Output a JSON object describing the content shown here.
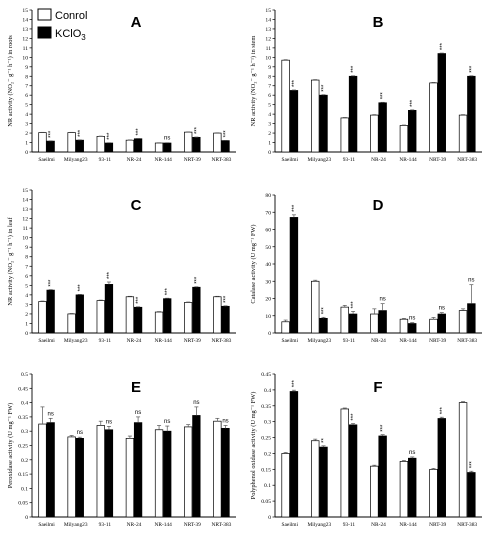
{
  "legend": {
    "control_label": "Conrol",
    "treatment_label_main": "KClO",
    "treatment_label_sub": "3"
  },
  "colors": {
    "control": "#ffffff",
    "treatment": "#000000"
  },
  "chart_data": [
    {
      "type": "bar",
      "panel": "A",
      "ylabel": "NR activity (NO₂⁻ g⁻¹ h⁻¹) in roots",
      "ylim": [
        0,
        15
      ],
      "yticks": [
        0,
        1,
        2,
        3,
        4,
        5,
        6,
        7,
        8,
        9,
        10,
        11,
        12,
        13,
        14,
        15
      ],
      "categories": [
        "Saeilmi",
        "Milyang23",
        "93-11",
        "NR-24",
        "NR-144",
        "NRT-39",
        "NRT-383"
      ],
      "series": [
        {
          "name": "Conrol",
          "values": [
            2.05,
            2.05,
            1.65,
            1.25,
            0.95,
            2.1,
            2.0
          ],
          "errors": [
            0.03,
            0.03,
            0.03,
            0.03,
            0.03,
            0.03,
            0.03
          ]
        },
        {
          "name": "KClO3",
          "values": [
            1.15,
            1.25,
            0.95,
            1.4,
            0.95,
            1.55,
            1.2
          ],
          "errors": [
            0.03,
            0.03,
            0.03,
            0.03,
            0.03,
            0.03,
            0.03
          ]
        }
      ],
      "significance": [
        "***",
        "***",
        "***",
        "***",
        "ns",
        "***",
        "***"
      ]
    },
    {
      "type": "bar",
      "panel": "B",
      "ylabel": "NR activity (NO₂⁻ g⁻¹ h⁻¹) in stem",
      "ylim": [
        0,
        15
      ],
      "yticks": [
        0,
        1,
        2,
        3,
        4,
        5,
        6,
        7,
        8,
        9,
        10,
        11,
        12,
        13,
        14,
        15
      ],
      "categories": [
        "Saeilmi",
        "Milyang23",
        "93-11",
        "NR-24",
        "NR-144",
        "NRT-39",
        "NRT-383"
      ],
      "series": [
        {
          "name": "Conrol",
          "values": [
            9.7,
            7.6,
            3.6,
            3.9,
            2.8,
            7.3,
            3.9
          ],
          "errors": [
            0.05,
            0.05,
            0.05,
            0.05,
            0.05,
            0.05,
            0.05
          ]
        },
        {
          "name": "KClO3",
          "values": [
            6.5,
            6.0,
            8.0,
            5.2,
            4.4,
            10.4,
            8.0
          ],
          "errors": [
            0.05,
            0.05,
            0.05,
            0.05,
            0.05,
            0.05,
            0.05
          ]
        }
      ],
      "significance": [
        "***",
        "***",
        "***",
        "***",
        "***",
        "***",
        "***"
      ]
    },
    {
      "type": "bar",
      "panel": "C",
      "ylabel": "NR activity (NO₂⁻ g⁻¹ h⁻¹) in leaf",
      "ylim": [
        0,
        15
      ],
      "yticks": [
        0,
        1,
        2,
        3,
        4,
        5,
        6,
        7,
        8,
        9,
        10,
        11,
        12,
        13,
        14,
        15
      ],
      "categories": [
        "Saeilmi",
        "Milyang23",
        "93-11",
        "NR-24",
        "NR-144",
        "NRT-39",
        "NRT-383"
      ],
      "series": [
        {
          "name": "Conrol",
          "values": [
            3.3,
            2.0,
            3.4,
            3.8,
            2.2,
            3.2,
            3.8
          ],
          "errors": [
            0.05,
            0.05,
            0.05,
            0.05,
            0.05,
            0.05,
            0.05
          ]
        },
        {
          "name": "KClO3",
          "values": [
            4.5,
            4.0,
            5.1,
            2.7,
            3.6,
            4.8,
            2.8
          ],
          "errors": [
            0.05,
            0.05,
            0.25,
            0.05,
            0.05,
            0.05,
            0.05
          ]
        }
      ],
      "significance": [
        "***",
        "***",
        "***",
        "***",
        "***",
        "***",
        "***"
      ]
    },
    {
      "type": "bar",
      "panel": "D",
      "ylabel": "Catalase activity (U mg⁻¹ FW)",
      "ylim": [
        0,
        80
      ],
      "yticks": [
        0,
        10,
        20,
        30,
        40,
        50,
        60,
        70,
        80
      ],
      "categories": [
        "Saeilmi",
        "Milyang23",
        "93-11",
        "NR-24",
        "NR-144",
        "NRT-39",
        "NRT-383"
      ],
      "series": [
        {
          "name": "Conrol",
          "values": [
            6.5,
            30.0,
            15.0,
            11.0,
            8.0,
            8.0,
            13.0
          ],
          "errors": [
            1.0,
            0.6,
            1.0,
            3.0,
            0.5,
            1.0,
            1.0
          ]
        },
        {
          "name": "KClO3",
          "values": [
            67.0,
            8.5,
            11.0,
            13.0,
            5.5,
            11.0,
            17.0
          ],
          "errors": [
            1.5,
            0.6,
            1.5,
            4.0,
            0.5,
            0.8,
            11.0
          ]
        }
      ],
      "significance": [
        "***",
        "***",
        "***",
        "ns",
        "ns",
        "ns",
        "ns"
      ]
    },
    {
      "type": "bar",
      "panel": "E",
      "ylabel": "Peroxidase activity (U mg⁻¹ FW)",
      "ylim": [
        0,
        0.5
      ],
      "yticks": [
        0,
        0.05,
        0.1,
        0.15,
        0.2,
        0.25,
        0.3,
        0.35,
        0.4,
        0.45,
        0.5
      ],
      "categories": [
        "Saeilmi",
        "Milyang23",
        "93-11",
        "NR-24",
        "NR-144",
        "NRT-39",
        "NRT-383"
      ],
      "series": [
        {
          "name": "Conrol",
          "values": [
            0.325,
            0.28,
            0.32,
            0.275,
            0.305,
            0.315,
            0.335
          ],
          "errors": [
            0.06,
            0.005,
            0.015,
            0.008,
            0.015,
            0.008,
            0.01
          ]
        },
        {
          "name": "KClO3",
          "values": [
            0.33,
            0.275,
            0.305,
            0.33,
            0.3,
            0.355,
            0.31
          ],
          "errors": [
            0.015,
            0.004,
            0.012,
            0.02,
            0.018,
            0.03,
            0.01
          ]
        }
      ],
      "significance": [
        "ns",
        "ns",
        "ns",
        "ns",
        "ns",
        "ns",
        "ns"
      ]
    },
    {
      "type": "bar",
      "panel": "F",
      "ylabel": "Polyphenol oxidase activity (U mg⁻¹ FW)",
      "ylim": [
        0,
        0.45
      ],
      "yticks": [
        0,
        0.05,
        0.1,
        0.15,
        0.2,
        0.25,
        0.3,
        0.35,
        0.4,
        0.45
      ],
      "categories": [
        "Saeilmi",
        "Milyang23",
        "93-11",
        "NR-24",
        "NR-144",
        "NRT-39",
        "NRT-383"
      ],
      "series": [
        {
          "name": "Conrol",
          "values": [
            0.2,
            0.24,
            0.34,
            0.16,
            0.175,
            0.15,
            0.36
          ],
          "errors": [
            0.003,
            0.005,
            0.003,
            0.003,
            0.003,
            0.003,
            0.003
          ]
        },
        {
          "name": "KClO3",
          "values": [
            0.395,
            0.22,
            0.29,
            0.255,
            0.185,
            0.31,
            0.14
          ],
          "errors": [
            0.004,
            0.004,
            0.004,
            0.004,
            0.004,
            0.004,
            0.004
          ]
        }
      ],
      "significance": [
        "***",
        "**",
        "***",
        "***",
        "ns",
        "***",
        "***"
      ]
    }
  ]
}
